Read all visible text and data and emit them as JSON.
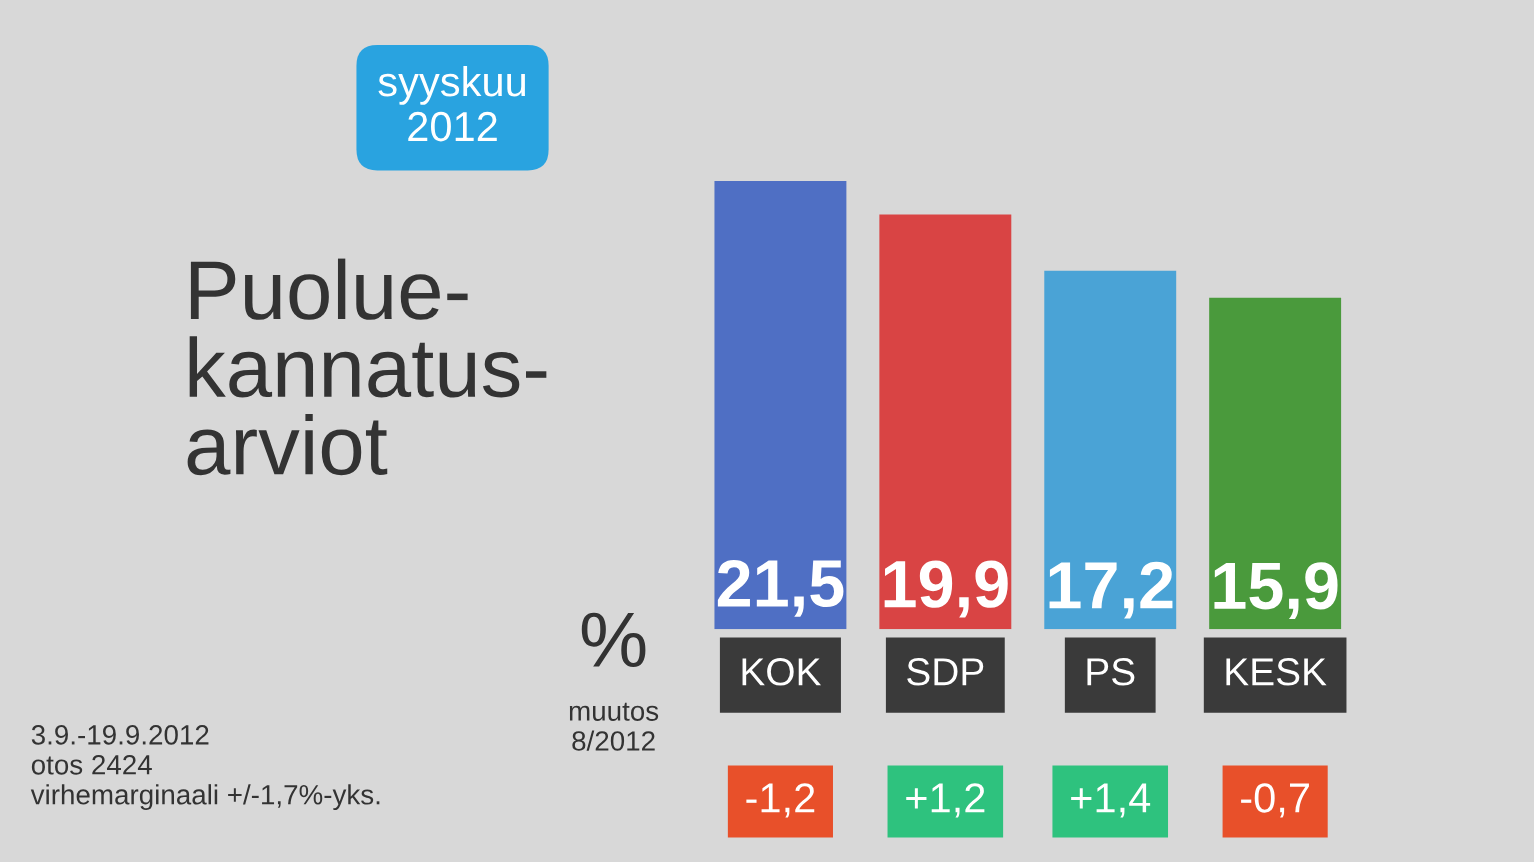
{
  "chart_data": {
    "type": "bar",
    "title": "Puolue-\nkannatus-\narviot",
    "subtitle": "syyskuu\n2012",
    "ylabel": "%",
    "categories": [
      "KOK",
      "SDP",
      "PS",
      "KESK"
    ],
    "values": [
      21.5,
      19.9,
      17.2,
      15.9
    ],
    "colors": [
      "#4f6fc4",
      "#d94444",
      "#4aa3d6",
      "#4a9a3c"
    ],
    "value_labels": [
      "21,5",
      "19,9",
      "17,2",
      "15,9"
    ],
    "annotations": [
      "muutos\n8/2012",
      "-1,2",
      "+1,2",
      "+1,4",
      "-0,7",
      "3.9.-19.9.2012\notos 2424\nvirhemarginaali +/-1,7%-yks."
    ],
    "grid": false,
    "legend": false
  }
}
